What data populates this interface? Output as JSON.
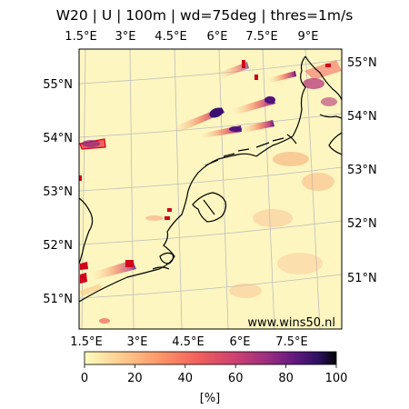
{
  "title": "W20 | U | 100m | wd=75deg | thres=1m/s",
  "credit": "www.wins50.nl",
  "top_lon_labels": [
    "1.5°E",
    "3°E",
    "4.5°E",
    "6°E",
    "7.5°E",
    "9°E"
  ],
  "bottom_lon_labels": [
    "1.5°E",
    "3°E",
    "4.5°E",
    "6°E",
    "7.5°E"
  ],
  "left_lat_labels": [
    "55°N",
    "54°N",
    "53°N",
    "52°N",
    "51°N"
  ],
  "right_lat_labels": [
    "55°N",
    "54°N",
    "53°N",
    "52°N",
    "51°N"
  ],
  "colorbar": {
    "label": "[%]",
    "ticks": [
      "0",
      "20",
      "40",
      "60",
      "80",
      "100"
    ],
    "min": 0,
    "max": 100,
    "colormap": "magma_r",
    "colors": [
      "#fcfdbf",
      "#feb078",
      "#f1605d",
      "#b63679",
      "#721f81",
      "#2c115f",
      "#000004"
    ]
  },
  "map": {
    "background": "#fdf6c0",
    "coastline_color": "#000000",
    "grid_color": "#bdbdbd"
  }
}
